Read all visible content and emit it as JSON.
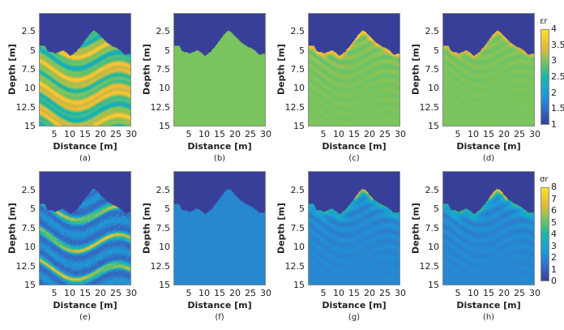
{
  "figure": {
    "panels": [
      {
        "label": "(a)",
        "quantity": "permittivity",
        "kind": "true-layered"
      },
      {
        "label": "(b)",
        "quantity": "permittivity",
        "kind": "homogeneous"
      },
      {
        "label": "(c)",
        "quantity": "permittivity",
        "kind": "inverted-strong"
      },
      {
        "label": "(d)",
        "quantity": "permittivity",
        "kind": "inverted-weak"
      },
      {
        "label": "(e)",
        "quantity": "conductivity",
        "kind": "true-layered"
      },
      {
        "label": "(f)",
        "quantity": "conductivity",
        "kind": "homogeneous"
      },
      {
        "label": "(g)",
        "quantity": "conductivity",
        "kind": "inverted-strong"
      },
      {
        "label": "(h)",
        "quantity": "conductivity",
        "kind": "inverted-weak"
      }
    ],
    "ylabel": "Depth [m]",
    "xlabel": "Distance [m]",
    "yticks": [
      "2.5",
      "5",
      "7.5",
      "10",
      "12.5",
      "15"
    ],
    "xticks": [
      "5",
      "10",
      "15",
      "20",
      "25",
      "30"
    ],
    "colorbars": [
      {
        "title": "εr",
        "min": 1,
        "max": 4,
        "ticks": [
          "1",
          "1.5",
          "2",
          "2.5",
          "3",
          "3.5",
          "4"
        ]
      },
      {
        "title": "σr",
        "min": 0,
        "max": 8,
        "ticks": [
          "0",
          "1",
          "2",
          "3",
          "4",
          "5",
          "6",
          "7",
          "8"
        ]
      }
    ],
    "colormap": "parula",
    "background_color": "#383f99"
  },
  "chart_data": {
    "type": "heatmap",
    "xlabel": "Distance [m]",
    "ylabel": "Depth [m]",
    "xlim": [
      0,
      30
    ],
    "ylim": [
      15,
      0
    ],
    "surface_profile_depth_m": [
      [
        0,
        4.2
      ],
      [
        1.5,
        4.2
      ],
      [
        2.5,
        5.0
      ],
      [
        4,
        5.1
      ],
      [
        5,
        5.3
      ],
      [
        6.5,
        5.0
      ],
      [
        7.5,
        4.8
      ],
      [
        9,
        5.2
      ],
      [
        10,
        5.6
      ],
      [
        12,
        5.0
      ],
      [
        14,
        4.0
      ],
      [
        16,
        2.9
      ],
      [
        17.5,
        2.2
      ],
      [
        18.5,
        2.3
      ],
      [
        20,
        3.0
      ],
      [
        22,
        3.8
      ],
      [
        24,
        4.3
      ],
      [
        26,
        4.7
      ],
      [
        28,
        5.4
      ],
      [
        30,
        5.3
      ]
    ],
    "homogeneous_values": {
      "permittivity": 3,
      "conductivity": 2
    }
  }
}
